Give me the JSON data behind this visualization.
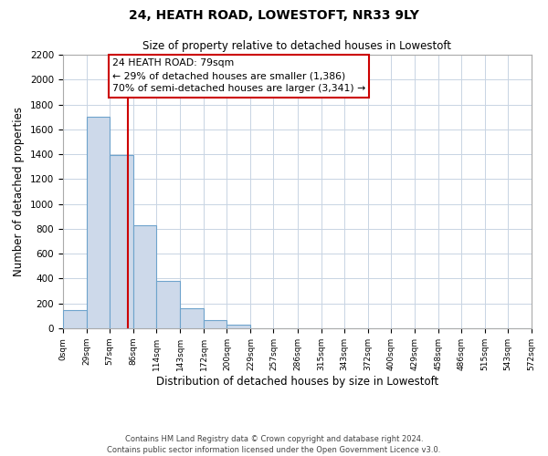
{
  "title1": "24, HEATH ROAD, LOWESTOFT, NR33 9LY",
  "title2": "Size of property relative to detached houses in Lowestoft",
  "xlabel": "Distribution of detached houses by size in Lowestoft",
  "ylabel": "Number of detached properties",
  "bin_edges": [
    0,
    29,
    57,
    86,
    114,
    143,
    172,
    200,
    229,
    257,
    286,
    315,
    343,
    372,
    400,
    429,
    458,
    486,
    515,
    543,
    572
  ],
  "bin_labels": [
    "0sqm",
    "29sqm",
    "57sqm",
    "86sqm",
    "114sqm",
    "143sqm",
    "172sqm",
    "200sqm",
    "229sqm",
    "257sqm",
    "286sqm",
    "315sqm",
    "343sqm",
    "372sqm",
    "400sqm",
    "429sqm",
    "458sqm",
    "486sqm",
    "515sqm",
    "543sqm",
    "572sqm"
  ],
  "bar_heights": [
    150,
    1700,
    1390,
    830,
    380,
    160,
    65,
    30,
    0,
    0,
    0,
    0,
    0,
    0,
    0,
    0,
    0,
    0,
    0,
    0
  ],
  "bar_color": "#cdd9ea",
  "bar_edge_color": "#6ea3cc",
  "vline_x": 79,
  "vline_color": "#cc0000",
  "ylim": [
    0,
    2200
  ],
  "yticks": [
    0,
    200,
    400,
    600,
    800,
    1000,
    1200,
    1400,
    1600,
    1800,
    2000,
    2200
  ],
  "annotation_line1": "24 HEATH ROAD: 79sqm",
  "annotation_line2": "← 29% of detached houses are smaller (1,386)",
  "annotation_line3": "70% of semi-detached houses are larger (3,341) →",
  "footer_text": "Contains HM Land Registry data © Crown copyright and database right 2024.\nContains public sector information licensed under the Open Government Licence v3.0.",
  "bg_color": "#ffffff",
  "grid_color": "#c8d4e3"
}
